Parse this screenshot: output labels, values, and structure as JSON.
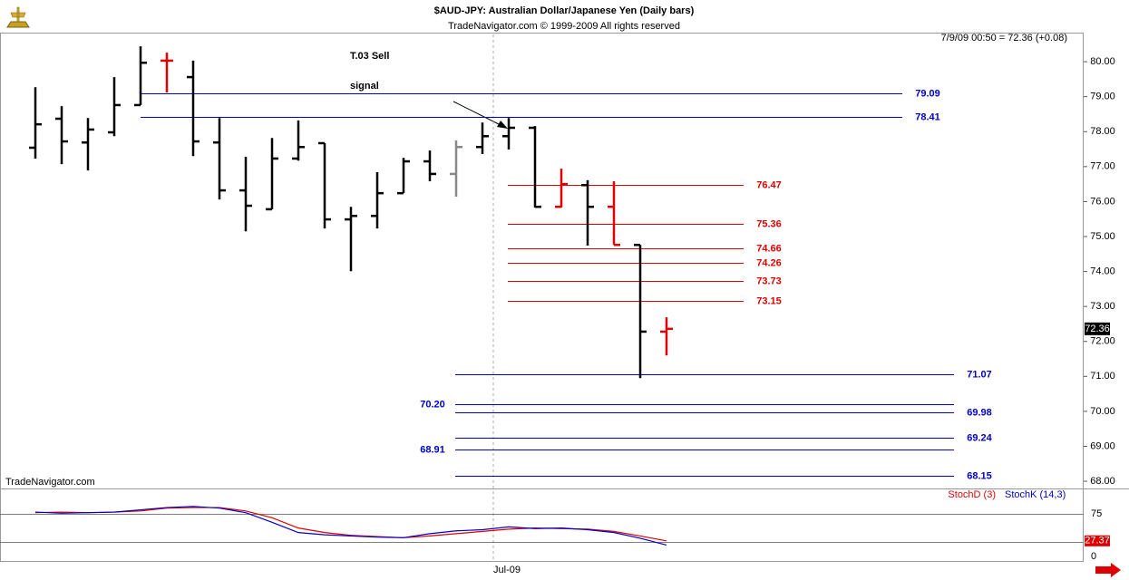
{
  "chart_data": [
    {
      "type": "ohlc",
      "title": "$AUD-JPY:  Australian Dollar/Japanese Yen  (Daily bars)",
      "subtitle": "TradeNavigator.com © 1999-2009 All rights reserved",
      "header": "7/9/09 00:50 = 72.36 (+0.08)",
      "watermark": "TradeNavigator.com",
      "annotation": [
        "T.03 Sell",
        "signal"
      ],
      "categories": [
        null,
        null,
        null,
        null,
        null,
        null,
        null,
        null,
        null,
        null,
        null,
        null,
        null,
        null,
        null,
        null,
        null,
        null,
        "Jul-09",
        null,
        null,
        null,
        null,
        null,
        null
      ],
      "open": [
        77.54,
        78.37,
        77.69,
        77.98,
        78.76,
        80.03,
        79.56,
        77.69,
        76.32,
        75.78,
        77.23,
        77.67,
        75.49,
        75.59,
        76.24,
        77.15,
        76.79,
        77.56,
        77.87,
        78.11,
        75.85,
        76.47,
        75.85,
        74.76,
        72.28
      ],
      "high": [
        79.27,
        78.73,
        78.39,
        79.56,
        80.44,
        80.26,
        80.03,
        78.39,
        77.28,
        77.82,
        78.32,
        77.67,
        75.85,
        76.84,
        77.25,
        77.46,
        77.75,
        78.26,
        78.39,
        78.16,
        76.94,
        76.61,
        76.58,
        74.76,
        72.69
      ],
      "low": [
        77.23,
        77.07,
        76.89,
        77.87,
        78.76,
        79.12,
        77.3,
        76.06,
        75.15,
        75.78,
        77.17,
        75.23,
        74.01,
        75.23,
        76.24,
        76.58,
        76.14,
        77.36,
        77.49,
        75.83,
        75.83,
        74.74,
        74.76,
        70.95,
        71.6
      ],
      "close": [
        78.21,
        77.72,
        78.06,
        78.76,
        79.97,
        80.03,
        77.72,
        76.32,
        75.88,
        77.23,
        77.56,
        75.49,
        75.59,
        76.24,
        77.15,
        76.79,
        77.56,
        77.87,
        78.11,
        75.85,
        76.5,
        75.85,
        74.76,
        72.28,
        72.36
      ],
      "colors": [
        "#000000",
        "#000000",
        "#000000",
        "#000000",
        "#000000",
        "#e00000",
        "#000000",
        "#000000",
        "#000000",
        "#000000",
        "#000000",
        "#000000",
        "#000000",
        "#000000",
        "#000000",
        "#000000",
        "#888888",
        "#000000",
        "#000000",
        "#000000",
        "#e00000",
        "#000000",
        "#e00000",
        "#000000",
        "#e00000"
      ],
      "ylim": [
        67.82,
        80.78
      ],
      "yticks": [
        {
          "value": 68,
          "label": "68.00"
        },
        {
          "value": 69,
          "label": "69.00"
        },
        {
          "value": 70,
          "label": "70.00"
        },
        {
          "value": 71,
          "label": "71.00"
        },
        {
          "value": 72,
          "label": "72.00"
        },
        {
          "value": 73,
          "label": "73.00"
        },
        {
          "value": 74,
          "label": "74.00"
        },
        {
          "value": 75,
          "label": "75.00"
        },
        {
          "value": 76,
          "label": "76.00"
        },
        {
          "value": 77,
          "label": "77.00"
        },
        {
          "value": 78,
          "label": "78.00"
        },
        {
          "value": 79,
          "label": "79.00"
        },
        {
          "value": 80,
          "label": "80.00"
        }
      ],
      "levels": [
        {
          "color": "#0000cc",
          "values": [
            79.09,
            78.41,
            71.07,
            70.2,
            69.98,
            69.24,
            68.91,
            68.15
          ],
          "value_labels": [
            "79.09",
            "78.41",
            "71.07",
            "70.20",
            "69.98",
            "69.24",
            "68.91",
            "68.15"
          ]
        },
        {
          "color": "#e00000",
          "values": [
            76.47,
            75.36,
            74.66,
            74.26,
            73.73,
            73.15
          ]
        }
      ]
    },
    {
      "type": "line",
      "ylim": [
        -9.6,
        118
      ],
      "yticks": [
        75,
        0
      ],
      "grid_lines": [
        75,
        25
      ],
      "series": [
        {
          "name": "StochD (3)",
          "color": "#e00000",
          "values": [
            77,
            78,
            77,
            78,
            80,
            85,
            86,
            86,
            80,
            68,
            50,
            42,
            37,
            35,
            33,
            36,
            40,
            44,
            48,
            50,
            49,
            48,
            44,
            36,
            27.37
          ]
        },
        {
          "name": "StochK (14,3)",
          "color": "#0000cc",
          "values": [
            78,
            76,
            77,
            78,
            82,
            86,
            88,
            85,
            77,
            60,
            42,
            38,
            36,
            34,
            33,
            40,
            45,
            47,
            52,
            49,
            50,
            47,
            42,
            32,
            20
          ]
        }
      ]
    }
  ]
}
